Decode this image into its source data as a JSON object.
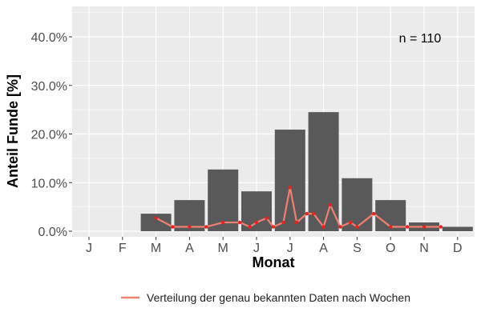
{
  "chart_data": {
    "type": "bar",
    "xlabel": "Monat",
    "ylabel": "Anteil Funde [%]",
    "ylim": [
      0,
      0.46
    ],
    "yticks": [
      0,
      0.1,
      0.2,
      0.3,
      0.4
    ],
    "ytick_labels": [
      "0.0%",
      "10.0%",
      "20.0%",
      "30.0%",
      "40.0%"
    ],
    "categories": [
      "J",
      "F",
      "M",
      "A",
      "M",
      "J",
      "J",
      "A",
      "S",
      "O",
      "N",
      "D"
    ],
    "values": [
      0.0,
      0.0,
      0.036,
      0.064,
      0.127,
      0.082,
      0.209,
      0.245,
      0.109,
      0.064,
      0.018,
      0.009
    ],
    "line_series": {
      "name": "Verteilung der genau bekannten Daten nach Wochen",
      "x_month": [
        3.0,
        3.5,
        4.0,
        4.5,
        5.0,
        5.5,
        5.8,
        6.0,
        6.3,
        6.5,
        6.8,
        7.0,
        7.2,
        7.5,
        7.7,
        8.0,
        8.2,
        8.5,
        8.8,
        9.0,
        9.5,
        10.0,
        10.5,
        11.0,
        11.5
      ],
      "y": [
        0.027,
        0.009,
        0.009,
        0.009,
        0.018,
        0.018,
        0.009,
        0.018,
        0.027,
        0.009,
        0.018,
        0.09,
        0.018,
        0.036,
        0.036,
        0.009,
        0.054,
        0.009,
        0.018,
        0.009,
        0.036,
        0.009,
        0.009,
        0.009,
        0.009
      ]
    },
    "annotation": "n = 110",
    "grid": true,
    "legend_position": "bottom",
    "colors": {
      "bar": "#595959",
      "line": "#f08070",
      "point": "#e8231f",
      "panel_background": "#ebebeb",
      "grid": "#ffffff"
    }
  }
}
